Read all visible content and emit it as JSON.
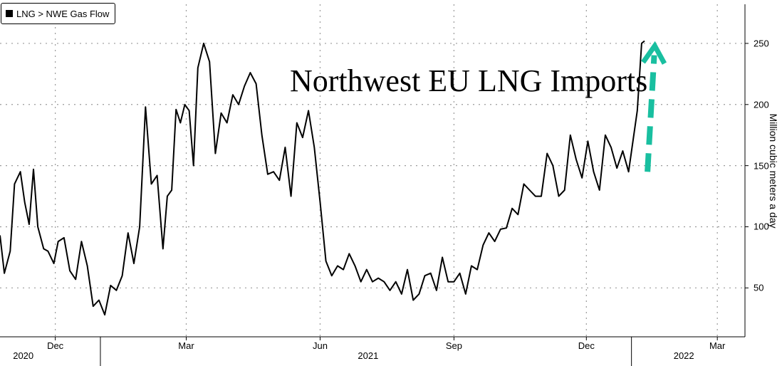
{
  "legend": {
    "label": "LNG > NWE Gas Flow"
  },
  "colors": {
    "line": "#000000",
    "arrow": "#19bfa0",
    "grid": "#9a9a9a"
  },
  "chart_data": {
    "type": "line",
    "title": "Northwest EU LNG Imports",
    "ylabel": "Million cubic meters a day",
    "ylim": [
      10,
      282
    ],
    "yticks": [
      50,
      100,
      150,
      200,
      250
    ],
    "grid": true,
    "legend_placement": "top-left",
    "x_axis": {
      "months": [
        {
          "label": "Dec",
          "date": "2020-12-01"
        },
        {
          "label": "Mar",
          "date": "2021-03-01"
        },
        {
          "label": "Jun",
          "date": "2021-06-01"
        },
        {
          "label": "Sep",
          "date": "2021-09-01"
        },
        {
          "label": "Dec",
          "date": "2021-12-01"
        },
        {
          "label": "Mar",
          "date": "2022-03-01"
        }
      ],
      "years": [
        {
          "label": "2020",
          "date": "2020-11-09"
        },
        {
          "label": "2021",
          "date": "2021-07-04"
        },
        {
          "label": "2022",
          "date": "2022-02-06"
        }
      ],
      "year_boundaries": [
        "2021-01-01",
        "2022-01-01"
      ],
      "range": [
        "2020-10-24",
        "2022-03-20"
      ]
    },
    "series": [
      {
        "x": [
          "2020-10-24",
          "2020-10-27",
          "2020-10-31",
          "2020-11-03",
          "2020-11-07",
          "2020-11-10",
          "2020-11-13",
          "2020-11-16",
          "2020-11-19",
          "2020-11-23",
          "2020-11-26",
          "2020-11-30",
          "2020-12-03",
          "2020-12-07",
          "2020-12-11",
          "2020-12-15",
          "2020-12-19",
          "2020-12-23",
          "2020-12-27",
          "2020-12-31",
          "2021-01-04",
          "2021-01-08",
          "2021-01-12",
          "2021-01-16",
          "2021-01-20",
          "2021-01-24",
          "2021-01-28",
          "2021-02-01",
          "2021-02-05",
          "2021-02-09",
          "2021-02-13",
          "2021-02-16",
          "2021-02-19",
          "2021-02-22",
          "2021-02-25",
          "2021-02-28",
          "2021-03-03",
          "2021-03-06",
          "2021-03-09",
          "2021-03-13",
          "2021-03-17",
          "2021-03-21",
          "2021-03-25",
          "2021-03-29",
          "2021-04-02",
          "2021-04-06",
          "2021-04-10",
          "2021-04-14",
          "2021-04-18",
          "2021-04-22",
          "2021-04-26",
          "2021-04-30",
          "2021-05-04",
          "2021-05-08",
          "2021-05-12",
          "2021-05-16",
          "2021-05-20",
          "2021-05-24",
          "2021-05-28",
          "2021-06-01",
          "2021-06-05",
          "2021-06-09",
          "2021-06-13",
          "2021-06-17",
          "2021-06-21",
          "2021-06-25",
          "2021-06-29",
          "2021-07-03",
          "2021-07-07",
          "2021-07-11",
          "2021-07-15",
          "2021-07-19",
          "2021-07-23",
          "2021-07-27",
          "2021-07-31",
          "2021-08-04",
          "2021-08-08",
          "2021-08-12",
          "2021-08-16",
          "2021-08-20",
          "2021-08-24",
          "2021-08-28",
          "2021-09-01",
          "2021-09-05",
          "2021-09-09",
          "2021-09-13",
          "2021-09-17",
          "2021-09-21",
          "2021-09-25",
          "2021-09-29",
          "2021-10-03",
          "2021-10-07",
          "2021-10-11",
          "2021-10-15",
          "2021-10-19",
          "2021-10-23",
          "2021-10-27",
          "2021-10-31",
          "2021-11-04",
          "2021-11-08",
          "2021-11-12",
          "2021-11-16",
          "2021-11-20",
          "2021-11-24",
          "2021-11-28",
          "2021-12-02",
          "2021-12-06",
          "2021-12-10",
          "2021-12-14",
          "2021-12-18",
          "2021-12-22",
          "2021-12-26",
          "2021-12-30",
          "2022-01-02",
          "2022-01-05",
          "2022-01-08",
          "2022-01-10"
        ],
        "values": [
          93,
          62,
          80,
          135,
          145,
          120,
          102,
          147,
          100,
          82,
          80,
          70,
          88,
          91,
          64,
          57,
          88,
          68,
          35,
          40,
          28,
          52,
          48,
          60,
          95,
          70,
          100,
          198,
          135,
          142,
          82,
          125,
          130,
          196,
          185,
          200,
          195,
          150,
          230,
          250,
          235,
          160,
          193,
          185,
          208,
          200,
          215,
          226,
          217,
          175,
          143,
          145,
          138,
          165,
          125,
          185,
          173,
          195,
          165,
          120,
          72,
          60,
          68,
          65,
          78,
          68,
          55,
          65,
          55,
          58,
          55,
          48,
          55,
          45,
          65,
          40,
          45,
          60,
          62,
          48,
          75,
          55,
          55,
          62,
          45,
          68,
          65,
          85,
          95,
          88,
          98,
          99,
          115,
          110,
          135,
          130,
          125,
          125,
          160,
          150,
          125,
          130,
          175,
          155,
          140,
          170,
          145,
          130,
          175,
          165,
          148,
          162,
          145,
          170,
          195,
          250,
          252
        ]
      }
    ],
    "annotations": [
      {
        "type": "arrow",
        "style": "dashed",
        "direction": "up",
        "from": {
          "x": "2022-01-12",
          "y": 145
        },
        "to": {
          "x": "2022-01-17",
          "y": 248
        }
      }
    ]
  }
}
